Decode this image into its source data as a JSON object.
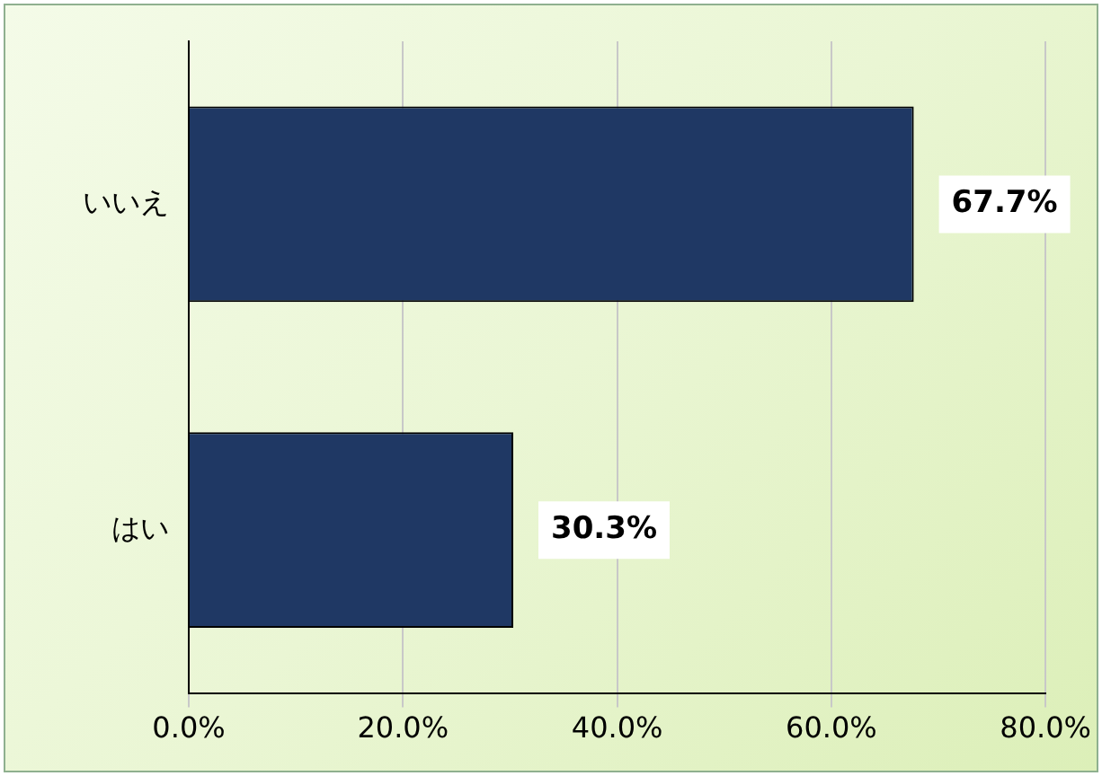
{
  "chart_data": {
    "type": "bar",
    "orientation": "horizontal",
    "categories": [
      "いいえ",
      "はい"
    ],
    "values": [
      67.7,
      30.3
    ],
    "color": "#1f3864",
    "value_labels": [
      "67.7%",
      "30.3%"
    ],
    "xlim": [
      0,
      80
    ],
    "xticks": [
      {
        "value": 0,
        "label": "0.0%"
      },
      {
        "value": 20,
        "label": "20.0%"
      },
      {
        "value": 40,
        "label": "40.0%"
      },
      {
        "value": 60,
        "label": "60.0%"
      },
      {
        "value": 80,
        "label": "80.0%"
      }
    ],
    "grid": "x",
    "legend": false
  }
}
